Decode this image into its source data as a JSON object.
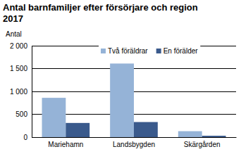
{
  "chart_data": {
    "type": "bar",
    "title": "Antal barnfamiljer efter försörjare och region 2017",
    "y_label": "Antal",
    "categories": [
      "Mariehamn",
      "Landsbygden",
      "Skärgården"
    ],
    "series": [
      {
        "name": "Två föräldrar",
        "color": "#95b3d7",
        "values": [
          860,
          1610,
          130
        ]
      },
      {
        "name": "En förälder",
        "color": "#3a5a8c",
        "values": [
          310,
          330,
          30
        ]
      }
    ],
    "ylim": [
      0,
      2000
    ],
    "yticks": [
      0,
      500,
      {
        "value": 1000,
        "label": "1 000"
      },
      {
        "value": 1500,
        "label": "1 500"
      },
      {
        "value": 2000,
        "label": "2 000"
      }
    ],
    "grid": true,
    "legend": "top"
  }
}
